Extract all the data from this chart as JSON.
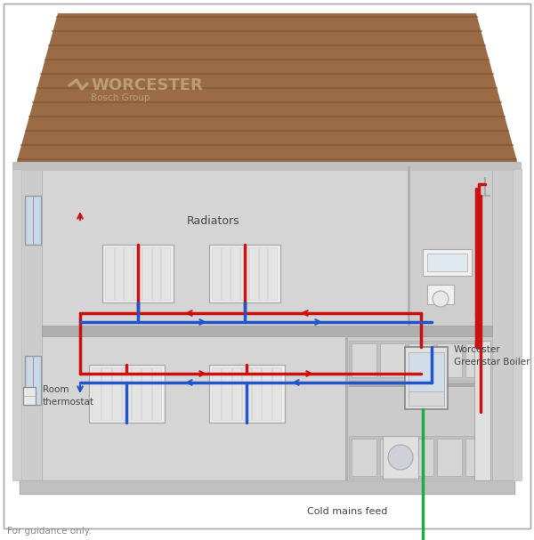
{
  "bg_color": "#ffffff",
  "roof_color": "#9B6B45",
  "roof_line_color": "#7A5230",
  "wall_color": "#D8D8D8",
  "wall_inner_color": "#C8C8C8",
  "floor_color": "#B8B8B8",
  "outer_wall_color": "#CCCCCC",
  "pipe_hot": "#CC1111",
  "pipe_cold": "#2255CC",
  "pipe_mains": "#22AA44",
  "radiator_color": "#EFEFEF",
  "radiator_line": "#CCCCCC",
  "boiler_color": "#E0E0E0",
  "kitchen_color": "#C8C8C8",
  "bathroom_color": "#D0D0D0",
  "window_color": "#C8D8E8",
  "text_color": "#444444",
  "footer_color": "#888888",
  "logo_color": "#C0A878",
  "footer": "For guidance only.",
  "label_radiators": "Radiators",
  "label_boiler": "Worcester\nGreenstar Boiler",
  "label_thermostat": "Room\nthermostat",
  "label_mains": "Cold mains feed",
  "logo_main": "WORCESTER",
  "logo_sub": "Bosch Group"
}
